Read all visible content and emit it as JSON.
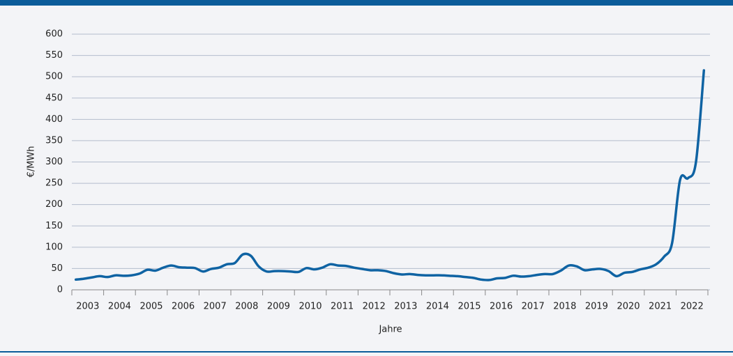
{
  "chart_data": {
    "type": "line",
    "ylabel": "€/MWh",
    "xlabel": "Jahre",
    "categories": [
      "2003",
      "2004",
      "2005",
      "2006",
      "2007",
      "2008",
      "2009",
      "2010",
      "2011",
      "2012",
      "2013",
      "2014",
      "2015",
      "2016",
      "2017",
      "2018",
      "2019",
      "2020",
      "2021",
      "2022"
    ],
    "xlim": [
      2003,
      2023
    ],
    "ylim": [
      0,
      600
    ],
    "yticks": [
      0,
      50,
      100,
      150,
      200,
      250,
      300,
      350,
      400,
      450,
      500,
      550,
      600
    ],
    "grid": true,
    "series": [
      {
        "color": "#0f63a3",
        "x": [
          2003.125,
          2003.375,
          2003.625,
          2003.875,
          2004.125,
          2004.375,
          2004.625,
          2004.875,
          2005.125,
          2005.375,
          2005.625,
          2005.875,
          2006.125,
          2006.375,
          2006.625,
          2006.875,
          2007.125,
          2007.375,
          2007.625,
          2007.875,
          2008.125,
          2008.375,
          2008.625,
          2008.875,
          2009.125,
          2009.375,
          2009.625,
          2009.875,
          2010.125,
          2010.375,
          2010.625,
          2010.875,
          2011.125,
          2011.375,
          2011.625,
          2011.875,
          2012.125,
          2012.375,
          2012.625,
          2012.875,
          2013.125,
          2013.375,
          2013.625,
          2013.875,
          2014.125,
          2014.375,
          2014.625,
          2014.875,
          2015.125,
          2015.375,
          2015.625,
          2015.875,
          2016.125,
          2016.375,
          2016.625,
          2016.875,
          2017.125,
          2017.375,
          2017.625,
          2017.875,
          2018.125,
          2018.375,
          2018.625,
          2018.875,
          2019.125,
          2019.375,
          2019.625,
          2019.875,
          2020.125,
          2020.375,
          2020.625,
          2020.875,
          2021.125,
          2021.375,
          2021.625,
          2021.875,
          2022.125,
          2022.375,
          2022.625,
          2022.875
        ],
        "values": [
          24,
          26,
          29,
          32,
          30,
          34,
          33,
          34,
          38,
          47,
          45,
          52,
          57,
          53,
          52,
          51,
          43,
          49,
          52,
          60,
          63,
          83,
          80,
          55,
          43,
          44,
          44,
          43,
          42,
          51,
          48,
          52,
          60,
          57,
          56,
          52,
          49,
          46,
          46,
          44,
          39,
          36,
          37,
          35,
          34,
          34,
          34,
          33,
          32,
          30,
          28,
          24,
          23,
          27,
          28,
          33,
          31,
          32,
          35,
          37,
          37,
          45,
          57,
          55,
          46,
          48,
          49,
          44,
          32,
          40,
          42,
          48,
          52,
          60,
          78,
          110,
          258,
          262,
          300,
          515
        ]
      }
    ]
  }
}
